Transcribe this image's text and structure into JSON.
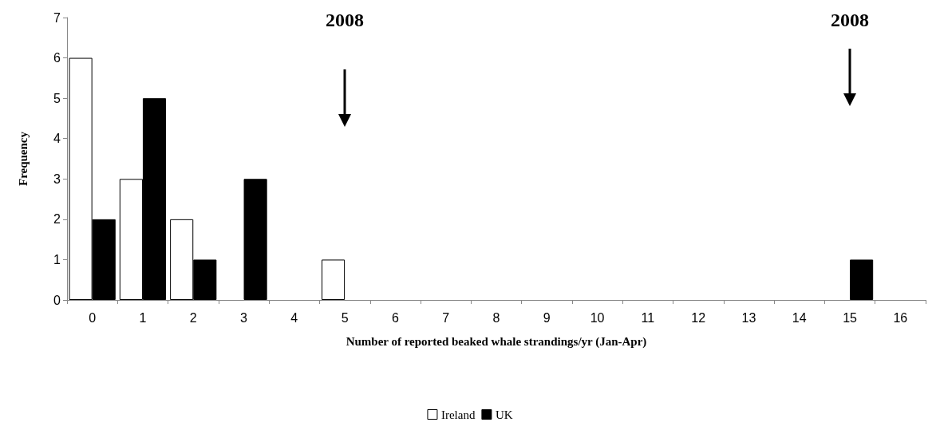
{
  "chart_data": {
    "type": "bar",
    "xlabel": "Number of reported beaked whale strandings/yr (Jan-Apr)",
    "ylabel": "Frequency",
    "categories": [
      "0",
      "1",
      "2",
      "3",
      "4",
      "5",
      "6",
      "7",
      "8",
      "9",
      "10",
      "11",
      "12",
      "13",
      "14",
      "15",
      "16"
    ],
    "series": [
      {
        "name": "Ireland",
        "color": "#ffffff",
        "values": [
          6,
          3,
          2,
          0,
          0,
          1,
          0,
          0,
          0,
          0,
          0,
          0,
          0,
          0,
          0,
          0,
          0
        ]
      },
      {
        "name": "UK",
        "color": "#000000",
        "values": [
          2,
          5,
          1,
          3,
          0,
          0,
          0,
          0,
          0,
          0,
          0,
          0,
          0,
          0,
          0,
          1,
          0
        ]
      }
    ],
    "ylim": [
      0,
      7
    ],
    "yticks": [
      0,
      1,
      2,
      3,
      4,
      5,
      6,
      7
    ],
    "grid": false,
    "legend": "bottom",
    "annotations": [
      "2008",
      "2008"
    ]
  }
}
